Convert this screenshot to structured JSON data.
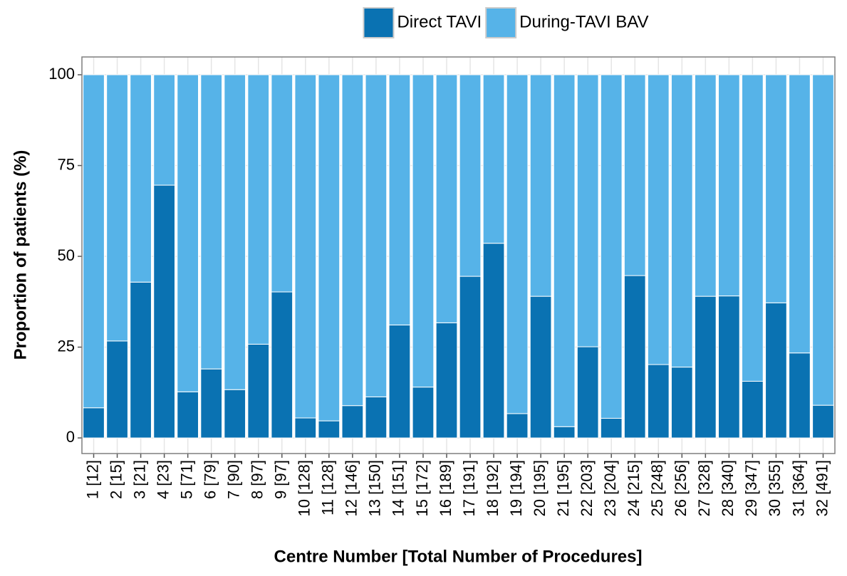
{
  "chart_data": {
    "type": "stacked_bar",
    "x_label": "Centre Number [Total Number of Procedures]",
    "y_label": "Proportion of patients (%)",
    "categories": [
      "1 [12]",
      "2 [15]",
      "3 [21]",
      "4 [23]",
      "5 [71]",
      "6 [79]",
      "7 [90]",
      "8 [97]",
      "9 [97]",
      "10 [128]",
      "11 [128]",
      "12 [146]",
      "13 [150]",
      "14 [151]",
      "15 [172]",
      "16 [189]",
      "17 [191]",
      "18 [192]",
      "19 [194]",
      "20 [195]",
      "21 [195]",
      "22 [203]",
      "23 [204]",
      "24 [215]",
      "25 [248]",
      "26 [256]",
      "27 [328]",
      "28 [340]",
      "29 [347]",
      "30 [355]",
      "31 [364]",
      "32 [491]"
    ],
    "series": [
      {
        "name": "Direct TAVI",
        "color": "#0a72b2",
        "values": [
          8.3,
          26.7,
          42.9,
          69.6,
          12.7,
          19.0,
          13.3,
          25.8,
          40.2,
          5.5,
          4.7,
          8.9,
          11.3,
          31.1,
          14.0,
          31.7,
          44.5,
          53.6,
          6.7,
          39.0,
          3.1,
          25.1,
          5.4,
          44.7,
          20.2,
          19.5,
          39.0,
          39.1,
          15.6,
          37.2,
          23.4,
          9.0
        ]
      },
      {
        "name": "During-TAVI BAV",
        "color": "#56b3e8",
        "values": [
          91.7,
          73.3,
          57.1,
          30.4,
          87.3,
          81.0,
          86.7,
          74.2,
          59.8,
          94.5,
          95.3,
          91.1,
          88.7,
          68.9,
          86.0,
          68.3,
          55.5,
          46.4,
          93.3,
          61.0,
          96.9,
          74.9,
          94.6,
          55.3,
          79.8,
          80.5,
          61.0,
          60.9,
          84.4,
          62.8,
          76.6,
          91.0
        ]
      }
    ],
    "ylim": [
      -4.3,
      104.9
    ],
    "yticks": [
      0,
      25,
      50,
      75,
      100
    ],
    "grid": true,
    "legend": "top"
  }
}
